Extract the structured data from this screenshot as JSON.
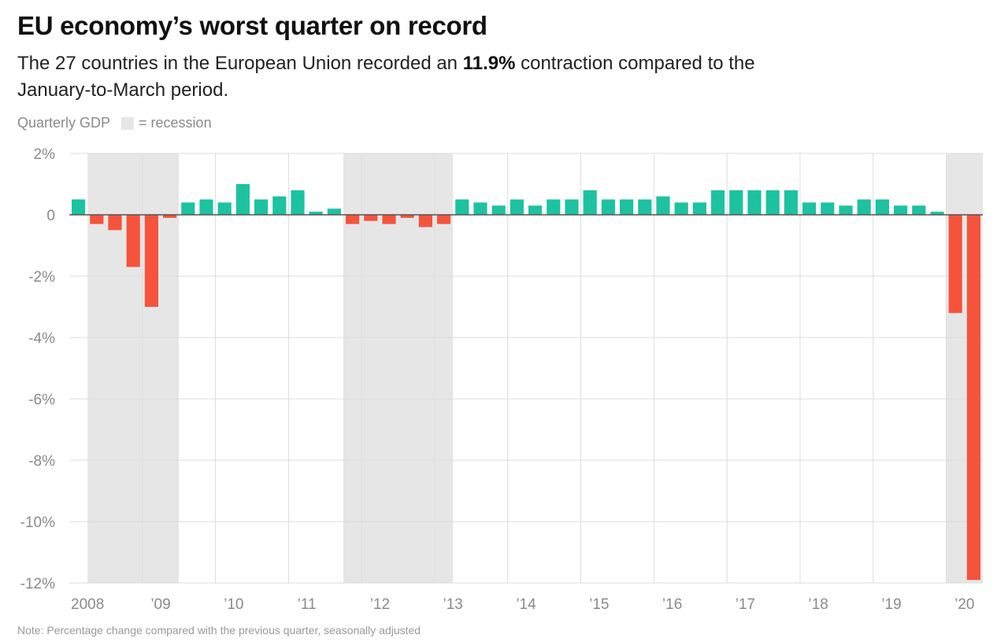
{
  "header": {
    "title": "EU economy’s worst quarter on record",
    "subtitle_pre": "The 27 countries in the European Union recorded an ",
    "subtitle_bold": "11.9%",
    "subtitle_post": " contraction compared to the January-to-March period."
  },
  "legend": {
    "series_label": "Quarterly GDP",
    "recession_label": "= recession"
  },
  "footer": {
    "note": "Note: Percentage change compared with the previous quarter, seasonally adjusted"
  },
  "colors": {
    "positive": "#1dc2a0",
    "negative": "#f4543c",
    "recession_band": "#e6e6e6",
    "grid": "#dcdcdc"
  },
  "chart_data": {
    "type": "bar",
    "title": "EU economy’s worst quarter on record",
    "ylabel": "Quarterly GDP",
    "xlabel": "",
    "ylim": [
      -12,
      2
    ],
    "yticks": [
      2,
      0,
      -2,
      -4,
      -6,
      -8,
      -10,
      -12
    ],
    "ytick_labels": [
      "2%",
      "0",
      "-2%",
      "-4%",
      "-6%",
      "-8%",
      "-10%",
      "-12%"
    ],
    "categories": [
      "2008 Q1",
      "2008 Q2",
      "2008 Q3",
      "2008 Q4",
      "2009 Q1",
      "2009 Q2",
      "2009 Q3",
      "2009 Q4",
      "2010 Q1",
      "2010 Q2",
      "2010 Q3",
      "2010 Q4",
      "2011 Q1",
      "2011 Q2",
      "2011 Q3",
      "2011 Q4",
      "2012 Q1",
      "2012 Q2",
      "2012 Q3",
      "2012 Q4",
      "2013 Q1",
      "2013 Q2",
      "2013 Q3",
      "2013 Q4",
      "2014 Q1",
      "2014 Q2",
      "2014 Q3",
      "2014 Q4",
      "2015 Q1",
      "2015 Q2",
      "2015 Q3",
      "2015 Q4",
      "2016 Q1",
      "2016 Q2",
      "2016 Q3",
      "2016 Q4",
      "2017 Q1",
      "2017 Q2",
      "2017 Q3",
      "2017 Q4",
      "2018 Q1",
      "2018 Q2",
      "2018 Q3",
      "2018 Q4",
      "2019 Q1",
      "2019 Q2",
      "2019 Q3",
      "2019 Q4",
      "2020 Q1",
      "2020 Q2"
    ],
    "values": [
      0.5,
      -0.3,
      -0.5,
      -1.7,
      -3.0,
      -0.1,
      0.4,
      0.5,
      0.4,
      1.0,
      0.5,
      0.6,
      0.8,
      0.1,
      0.2,
      -0.3,
      -0.2,
      -0.3,
      -0.1,
      -0.4,
      -0.3,
      0.5,
      0.4,
      0.3,
      0.5,
      0.3,
      0.5,
      0.5,
      0.8,
      0.5,
      0.5,
      0.5,
      0.6,
      0.4,
      0.4,
      0.8,
      0.8,
      0.8,
      0.8,
      0.8,
      0.4,
      0.4,
      0.3,
      0.5,
      0.5,
      0.3,
      0.3,
      0.1,
      -3.2,
      -11.9
    ],
    "x_tick_labels": [
      "2008",
      "’09",
      "’10",
      "’11",
      "’12",
      "’13",
      "’14",
      "’15",
      "’16",
      "’17",
      "’18",
      "’19",
      "’20"
    ],
    "recession_periods": [
      [
        1,
        5
      ],
      [
        15,
        20
      ],
      [
        48,
        49
      ]
    ],
    "grid": true
  }
}
